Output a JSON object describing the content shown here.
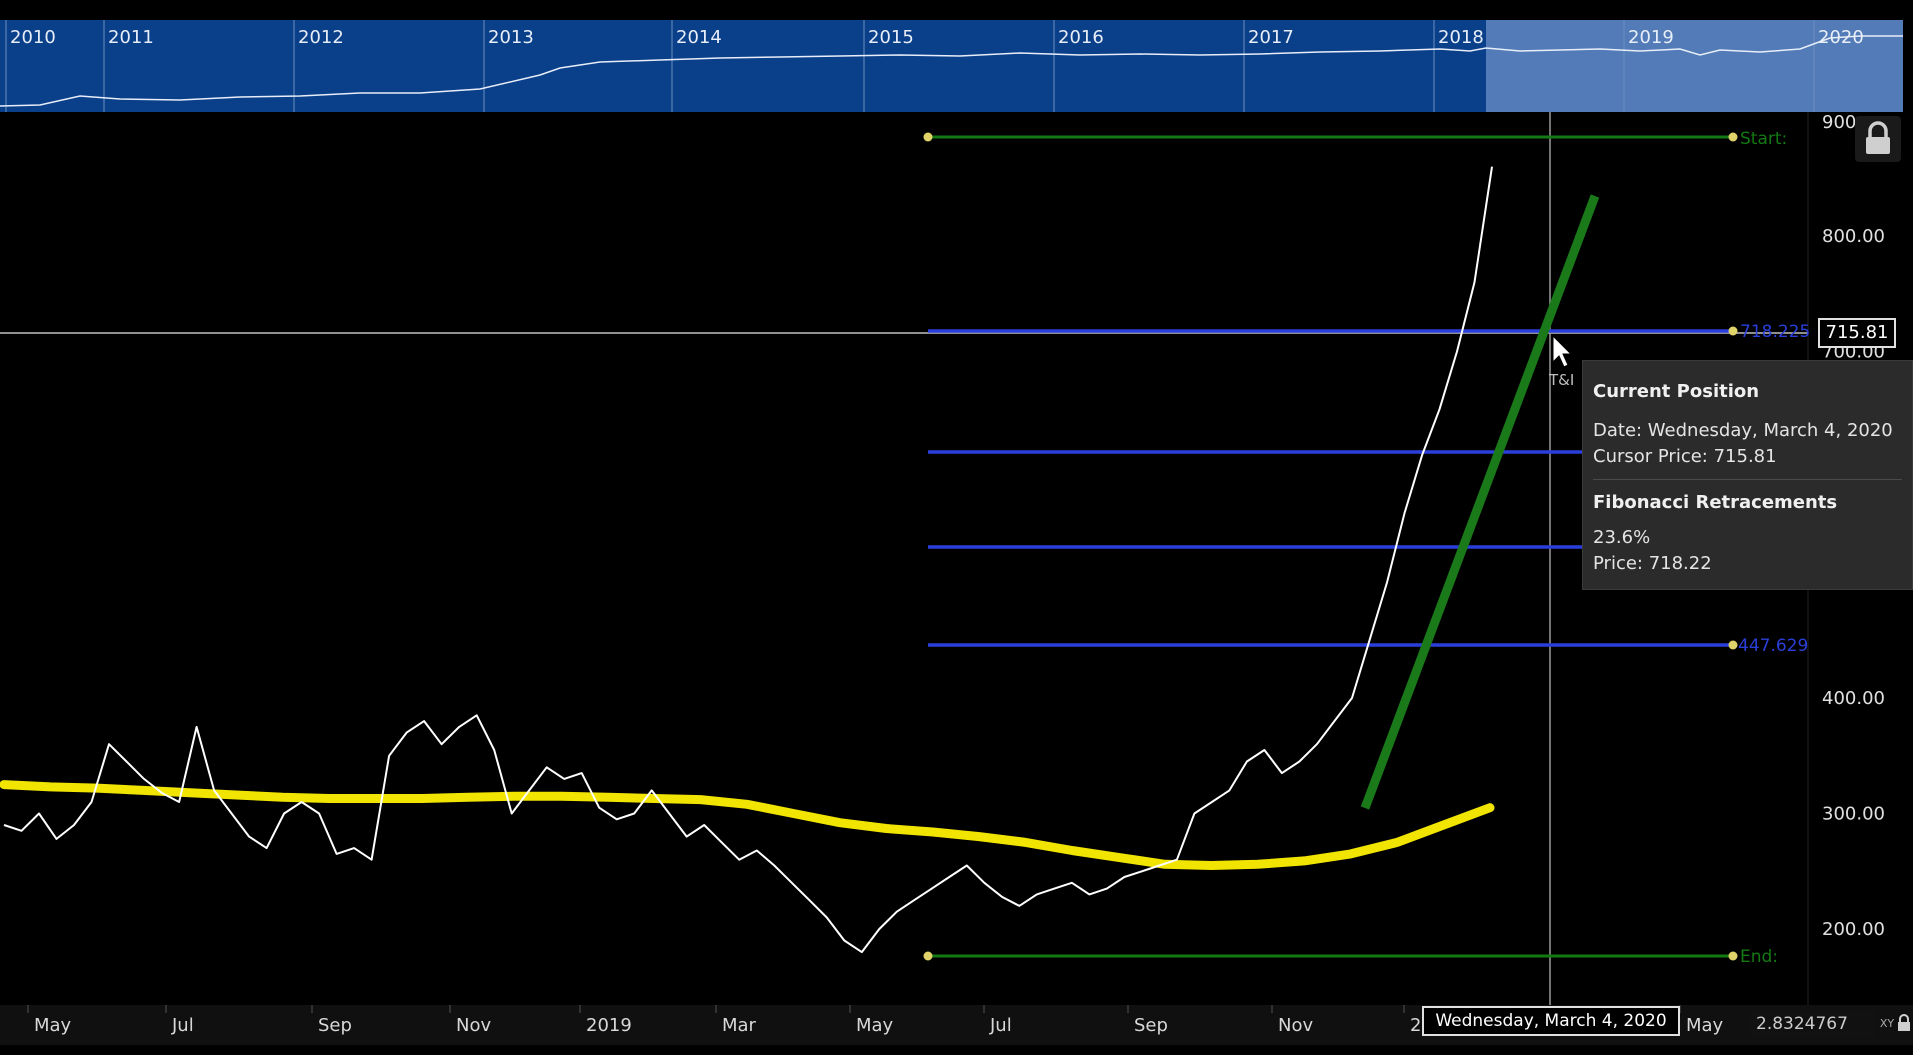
{
  "navigator": {
    "years": [
      "2010",
      "2011",
      "2012",
      "2013",
      "2014",
      "2015",
      "2016",
      "2017",
      "2018",
      "2019",
      "2020"
    ]
  },
  "x_axis": {
    "months": [
      "May",
      "Jul",
      "Sep",
      "Nov",
      "2019",
      "Mar",
      "May",
      "Jul",
      "Sep",
      "Nov",
      "2",
      "May"
    ]
  },
  "y_axis": {
    "top_label": "900",
    "labels": [
      "800.00",
      "700.00",
      "400.00",
      "300.00",
      "200.00"
    ]
  },
  "fib": {
    "start_label": "Start:",
    "level_partial": "718.225",
    "level_447": "447.629",
    "end_label": "End:"
  },
  "cursor": {
    "price_label": "715.81",
    "date_label": "Wednesday, March 4, 2020",
    "marker_text": "T&I"
  },
  "tooltip": {
    "title": "Current Position",
    "date_line": "Date: Wednesday, March 4, 2020",
    "price_line": "Cursor Price: 715.81",
    "section_title": "Fibonacci Retracements",
    "pct_line": "23.6%",
    "fib_price_line": "Price: 718.22"
  },
  "footer": {
    "ratio_value": "2.8324767",
    "xy_label": "XY"
  },
  "colors": {
    "background": "#000000",
    "navigator": "#0a3f8a",
    "navigator_selected": "#5f86bf",
    "fib_lines": "#2a3fd9",
    "fib_range": "#137a13",
    "trendline": "#1a7a1a",
    "moving_average": "#f0e400",
    "price": "#ffffff"
  },
  "chart_data": {
    "type": "line",
    "y_ticks": [
      200,
      300,
      400,
      700,
      800,
      900
    ],
    "ylim": [
      150,
      900
    ],
    "series": [
      {
        "values": [
          290,
          285,
          300,
          278,
          290,
          310,
          360,
          345,
          330,
          318,
          310,
          375,
          320,
          300,
          280,
          270,
          300,
          310,
          300,
          265,
          270,
          260,
          350,
          370,
          380,
          360,
          375,
          385,
          355,
          300,
          320,
          340,
          330,
          335,
          305,
          295,
          300,
          320,
          300,
          280,
          290,
          275,
          260,
          268,
          255,
          240,
          225,
          210,
          190,
          180,
          200,
          215,
          225,
          235,
          245,
          255,
          240,
          228,
          220,
          230,
          235,
          240,
          230,
          235,
          245,
          250,
          255,
          260,
          300,
          310,
          320,
          345,
          355,
          335,
          345,
          360,
          380,
          400,
          450,
          500,
          560,
          610,
          650,
          700,
          760,
          860
        ]
      },
      {
        "values": [
          325,
          323,
          322,
          320,
          318,
          316,
          314,
          313,
          313,
          313,
          314,
          315,
          315,
          314,
          313,
          312,
          308,
          300,
          292,
          287,
          284,
          280,
          275,
          268,
          262,
          256,
          255,
          256,
          259,
          265,
          275,
          290,
          305
        ]
      }
    ],
    "fibonacci": {
      "start": 895,
      "end": 177,
      "levels": [
        718.225,
        447.629
      ]
    }
  }
}
